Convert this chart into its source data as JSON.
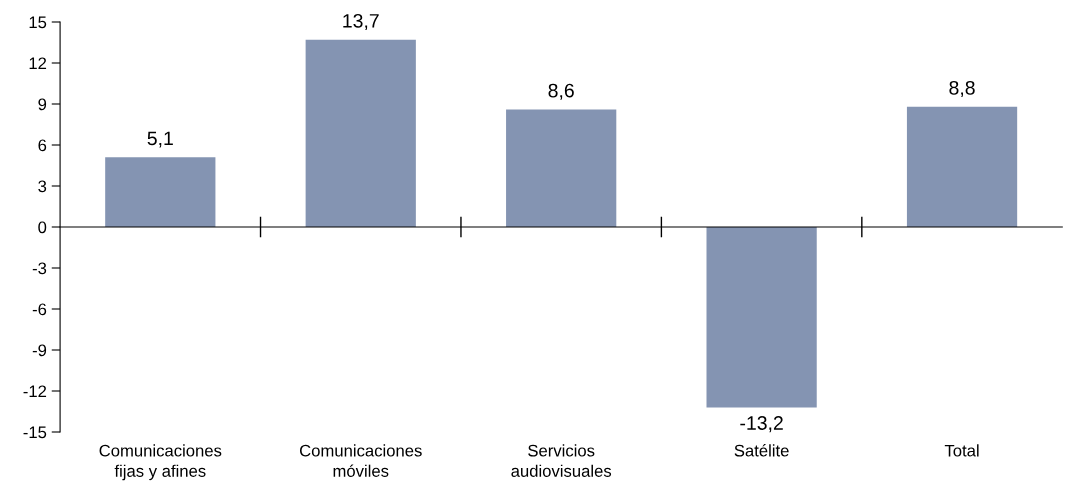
{
  "chart_data": {
    "type": "bar",
    "categories": [
      "Comunicaciones\nfijas y afines",
      "Comunicaciones\nmóviles",
      "Servicios\naudiovisuales",
      "Satélite",
      "Total"
    ],
    "values": [
      5.1,
      13.7,
      8.6,
      -13.2,
      8.8
    ],
    "value_labels": [
      "5,1",
      "13,7",
      "8,6",
      "-13,2",
      "8,8"
    ],
    "color": "#8494b2",
    "ylim": [
      -15,
      15
    ],
    "yticks": [
      {
        "value": -15,
        "label": "-15"
      },
      {
        "value": -12,
        "label": "-12"
      },
      {
        "value": -9,
        "label": "-9"
      },
      {
        "value": -6,
        "label": "-6"
      },
      {
        "value": -3,
        "label": "-3"
      },
      0,
      3,
      6,
      9,
      12,
      15
    ],
    "legend": false
  }
}
